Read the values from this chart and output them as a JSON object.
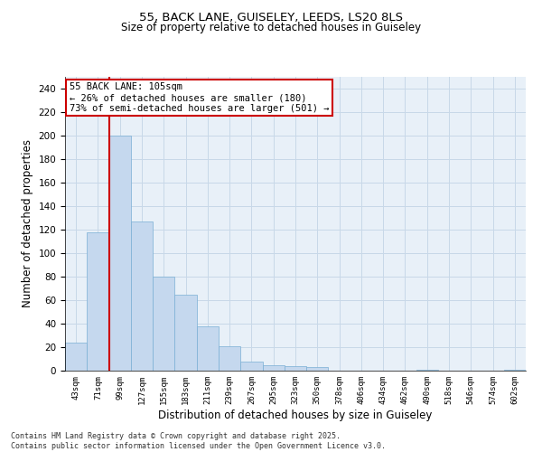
{
  "title1": "55, BACK LANE, GUISELEY, LEEDS, LS20 8LS",
  "title2": "Size of property relative to detached houses in Guiseley",
  "xlabel": "Distribution of detached houses by size in Guiseley",
  "ylabel": "Number of detached properties",
  "categories": [
    "43sqm",
    "71sqm",
    "99sqm",
    "127sqm",
    "155sqm",
    "183sqm",
    "211sqm",
    "239sqm",
    "267sqm",
    "295sqm",
    "323sqm",
    "350sqm",
    "378sqm",
    "406sqm",
    "434sqm",
    "462sqm",
    "490sqm",
    "518sqm",
    "546sqm",
    "574sqm",
    "602sqm"
  ],
  "values": [
    24,
    118,
    200,
    127,
    80,
    65,
    38,
    21,
    8,
    5,
    4,
    3,
    0,
    0,
    0,
    0,
    1,
    0,
    0,
    0,
    1
  ],
  "bar_color": "#c5d8ee",
  "bar_edge_color": "#7aafd4",
  "vline_color": "#cc0000",
  "annotation_text": "55 BACK LANE: 105sqm\n← 26% of detached houses are smaller (180)\n73% of semi-detached houses are larger (501) →",
  "annotation_box_color": "#cc0000",
  "ylim": [
    0,
    250
  ],
  "yticks": [
    0,
    20,
    40,
    60,
    80,
    100,
    120,
    140,
    160,
    180,
    200,
    220,
    240
  ],
  "grid_color": "#c8d8e8",
  "bg_color": "#e8f0f8",
  "footer1": "Contains HM Land Registry data © Crown copyright and database right 2025.",
  "footer2": "Contains public sector information licensed under the Open Government Licence v3.0."
}
